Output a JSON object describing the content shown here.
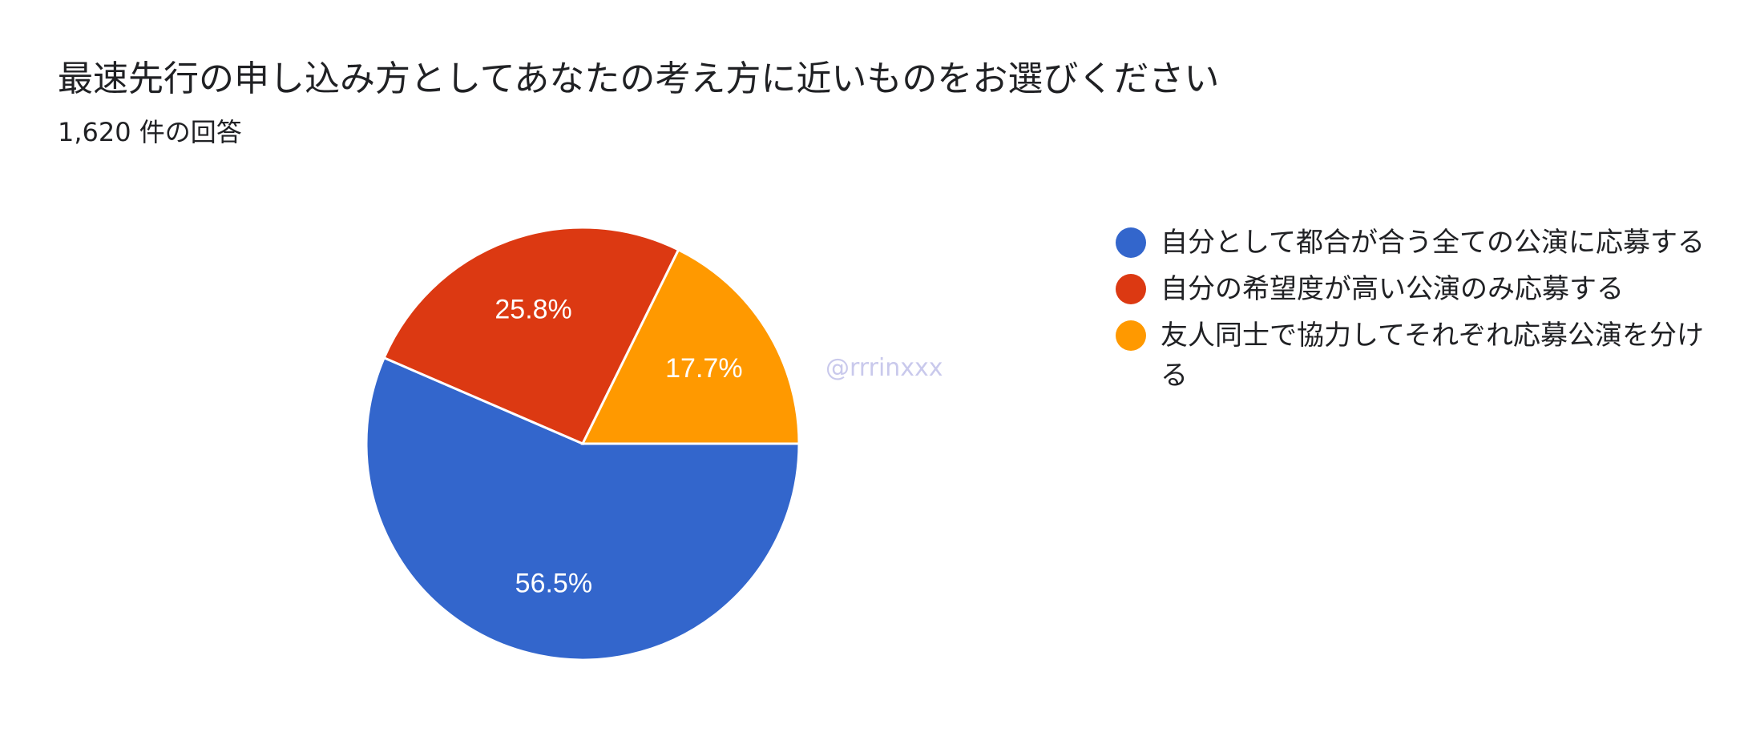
{
  "title": "最速先行の申し込み方としてあなたの考え方に近いものをお選びください",
  "subtitle": "1,620 件の回答",
  "watermark": "@rrrinxxx",
  "chart_data": {
    "type": "pie",
    "slices": [
      {
        "label": "自分として都合が合う全ての公演に応募する",
        "value": 56.5,
        "display": "56.5%",
        "color": "#3366cc"
      },
      {
        "label": "自分の希望度が高い公演のみ応募する",
        "value": 25.8,
        "display": "25.8%",
        "color": "#dc3912"
      },
      {
        "label": "友人同士で協力してそれぞれ応募公演を分ける",
        "value": 17.7,
        "display": "17.7%",
        "color": "#ff9900"
      }
    ],
    "legend_position": "right"
  }
}
